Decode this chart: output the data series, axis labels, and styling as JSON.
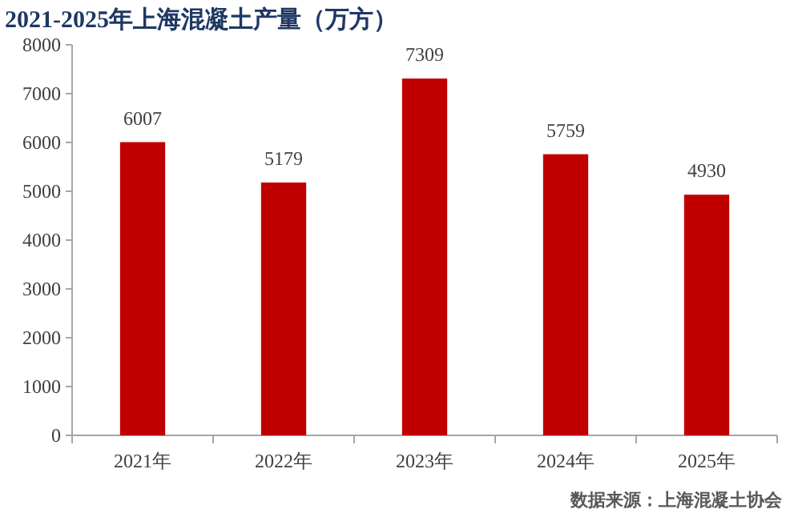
{
  "chart_data": {
    "type": "bar",
    "title": "2021-2025年上海混凝土产量（万方）",
    "categories": [
      "2021年",
      "2022年",
      "2023年",
      "2024年",
      "2025年"
    ],
    "values": [
      6007,
      5179,
      7309,
      5759,
      4930
    ],
    "color": "#c00000",
    "ylim": [
      0,
      8000
    ],
    "yticks": [
      0,
      1000,
      2000,
      3000,
      4000,
      5000,
      6000,
      7000,
      8000
    ],
    "data_labels": true,
    "annotations": [
      "数据来源：上海混凝土协会"
    ]
  }
}
